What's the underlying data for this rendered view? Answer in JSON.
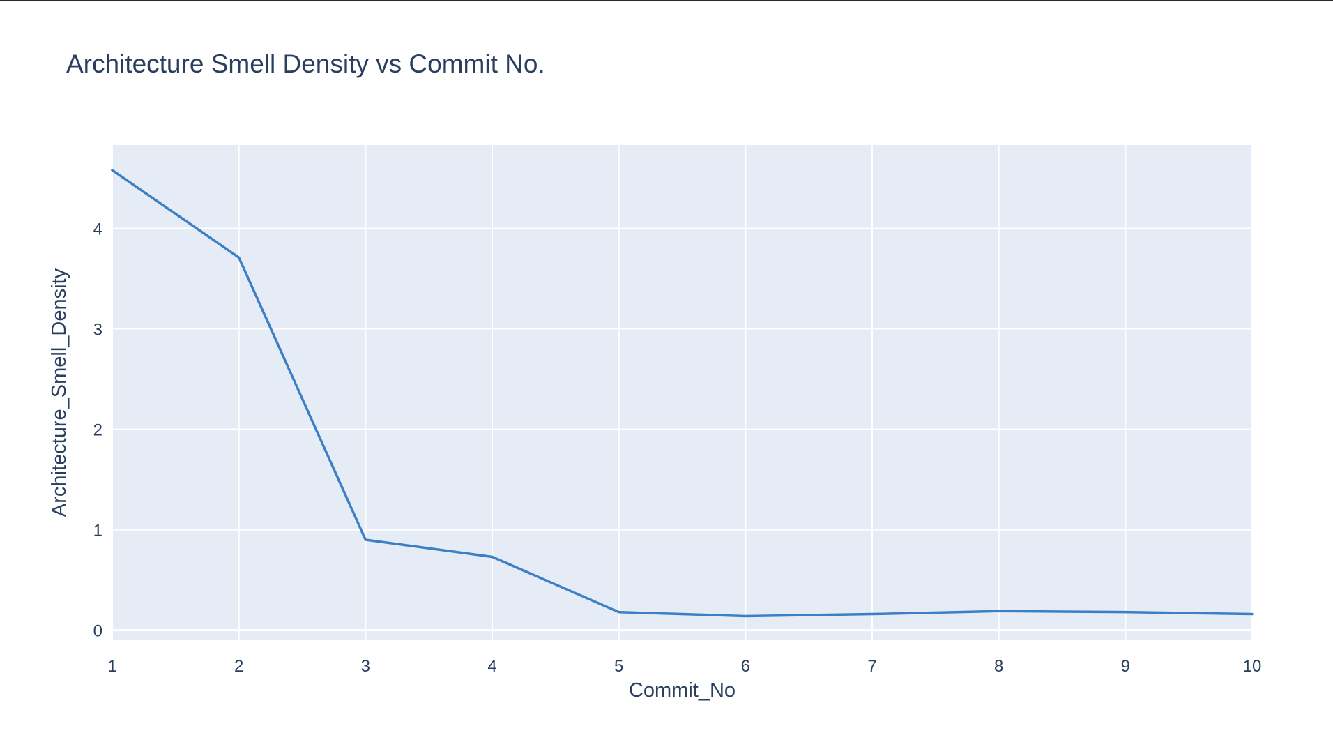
{
  "chart_data": {
    "type": "line",
    "title": "Architecture Smell Density vs Commit No.",
    "xlabel": "Commit_No",
    "ylabel": "Architecture_Smell_Density",
    "x": [
      1,
      2,
      3,
      4,
      5,
      6,
      7,
      8,
      9,
      10
    ],
    "series": [
      {
        "values": [
          4.58,
          3.71,
          0.9,
          0.73,
          0.18,
          0.14,
          0.16,
          0.19,
          0.18,
          0.16
        ],
        "color": "#3d7fc4"
      }
    ],
    "xlim": [
      1,
      10
    ],
    "ylim": [
      -0.1,
      4.83
    ],
    "xticks": [
      1,
      2,
      3,
      4,
      5,
      6,
      7,
      8,
      9,
      10
    ],
    "yticks": [
      0,
      1,
      2,
      3,
      4
    ],
    "grid": true,
    "legend": "none",
    "colors": {
      "plot_background": "#e5ecf6",
      "grid": "#ffffff",
      "text": "#2a3f5f"
    }
  }
}
